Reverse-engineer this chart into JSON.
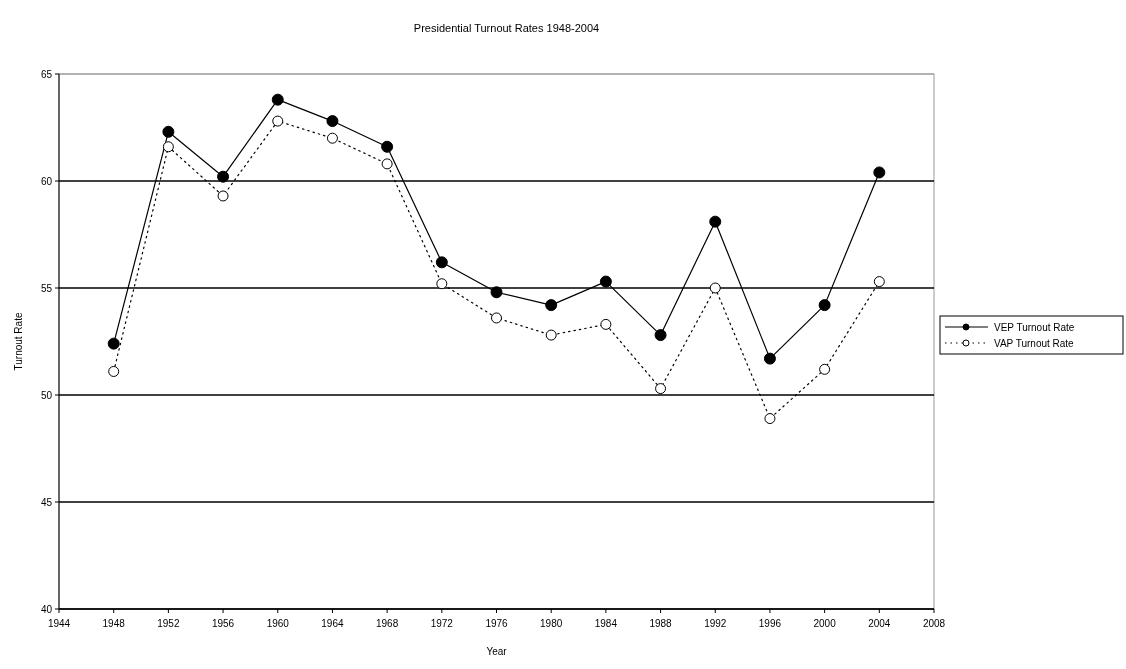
{
  "chart_data": {
    "type": "line",
    "title": "Presidential Turnout Rates 1948-2004",
    "xlabel": "Year",
    "ylabel": "Turnout Rate",
    "x": [
      1948,
      1952,
      1956,
      1960,
      1964,
      1968,
      1972,
      1976,
      1980,
      1984,
      1988,
      1992,
      1996,
      2000,
      2004
    ],
    "series": [
      {
        "name": "VEP Turnout Rate",
        "color": "#000000",
        "line_style": "solid",
        "marker": "circle",
        "values": [
          52.4,
          62.3,
          60.2,
          63.8,
          62.8,
          61.6,
          56.2,
          54.8,
          54.2,
          55.3,
          52.8,
          58.1,
          51.7,
          54.2,
          60.4
        ]
      },
      {
        "name": "VAP Turnout Rate",
        "color": "#000000",
        "line_style": "dotted",
        "marker": "circle",
        "values": [
          51.1,
          61.6,
          59.3,
          62.8,
          62.0,
          60.8,
          55.2,
          53.6,
          52.8,
          53.3,
          50.3,
          55.0,
          48.9,
          51.2,
          55.3
        ]
      }
    ],
    "xlim": [
      1944,
      2008
    ],
    "xticks": [
      1944,
      1948,
      1952,
      1956,
      1960,
      1964,
      1968,
      1972,
      1976,
      1980,
      1984,
      1988,
      1992,
      1996,
      2000,
      2004,
      2008
    ],
    "ylim": [
      40,
      65
    ],
    "yticks": [
      40,
      45,
      50,
      55,
      60,
      65
    ],
    "grid": "y",
    "legend": "right"
  }
}
